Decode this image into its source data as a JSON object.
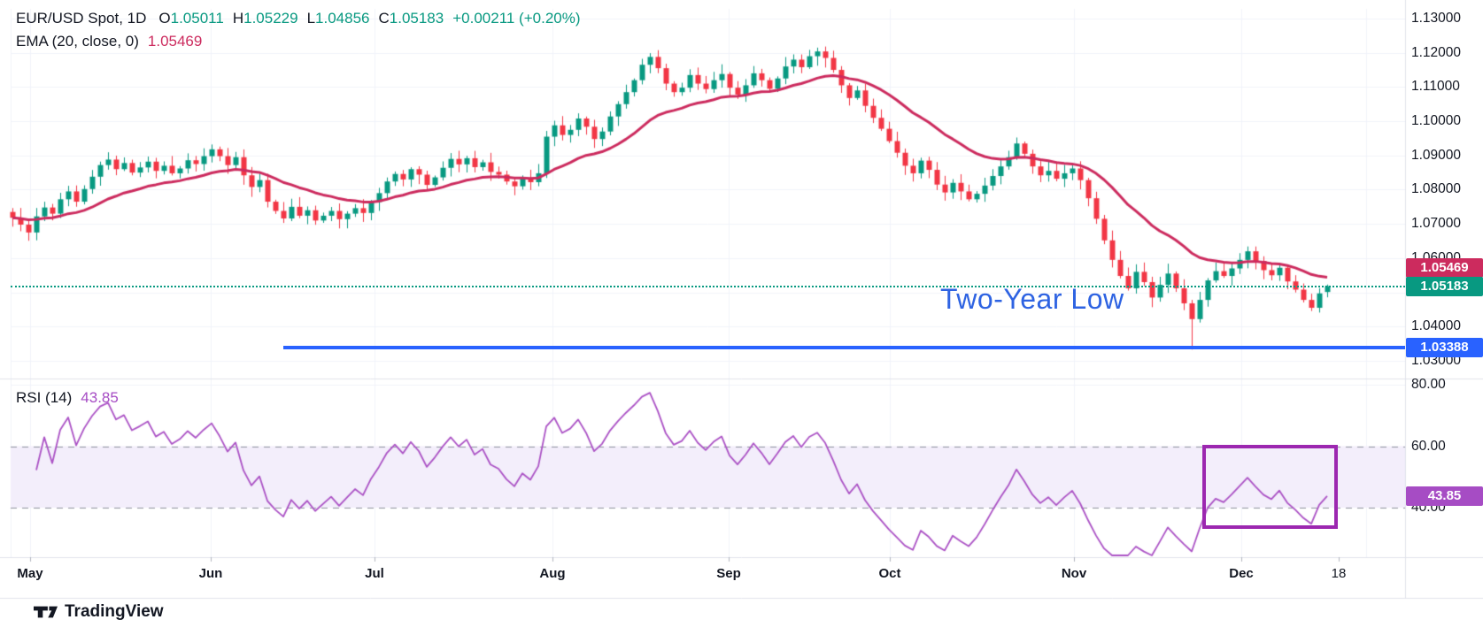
{
  "legend": {
    "symbol": "EUR/USD Spot, 1D",
    "ohlc": [
      {
        "k": "O",
        "v": "1.05011"
      },
      {
        "k": "H",
        "v": "1.05229"
      },
      {
        "k": "L",
        "v": "1.04856"
      },
      {
        "k": "C",
        "v": "1.05183"
      }
    ],
    "change": "+0.00211 (+0.20%)",
    "ema_label": "EMA (20, close, 0)",
    "ema_value": "1.05469",
    "rsi_label": "RSI (14)",
    "rsi_value": "43.85"
  },
  "badges": {
    "ema": "1.05469",
    "close": "1.05183",
    "support": "1.03388",
    "rsi": "43.85"
  },
  "annotations": {
    "two_year_low": "Two-Year Low",
    "support_price": "1.03388"
  },
  "watermark": "TradingView",
  "price_axis": {
    "labels": [
      "1.13000",
      "1.12000",
      "1.11000",
      "1.10000",
      "1.09000",
      "1.08000",
      "1.07000",
      "1.06000",
      "1.05000",
      "1.04000",
      "1.03000"
    ]
  },
  "rsi_axis": {
    "labels": [
      "80.00",
      "60.00",
      "40.00"
    ]
  },
  "time_axis": {
    "labels": [
      "May",
      "Jun",
      "Jul",
      "Aug",
      "Sep",
      "Oct",
      "Nov",
      "Dec",
      "18"
    ]
  },
  "colors": {
    "up": "#089981",
    "down": "#f23645",
    "ema": "#cc2b5e",
    "rsi_line": "#ab52c5",
    "badge_rsi": "#a64cc4",
    "support_blue": "#2962ff",
    "annotation_blue": "#2e63e2",
    "rsi_box": "#9c27b0",
    "text_dark": "#131722",
    "grid": "#f0f3fa",
    "band_fill": "#f3eefb",
    "dashed_gray": "#8f939e",
    "separator": "#e0e3eb"
  },
  "chart_data": {
    "type": "candlestick",
    "title": "EUR/USD Spot, 1D",
    "symbol": "EUR/USD Spot",
    "timeframe": "1D",
    "ylim": [
      1.03,
      1.13
    ],
    "x_categories": [
      "May",
      "Jun",
      "Jul",
      "Aug",
      "Sep",
      "Oct",
      "Nov",
      "Dec"
    ],
    "grid": true,
    "first_open": 1.0735,
    "closes": [
      1.0718,
      1.0698,
      1.0675,
      1.0722,
      1.0748,
      1.073,
      1.0772,
      1.0795,
      1.0765,
      1.0802,
      1.0838,
      1.0872,
      1.0888,
      1.086,
      1.0878,
      1.085,
      1.0865,
      1.0882,
      1.0855,
      1.087,
      1.0848,
      1.0862,
      1.0886,
      1.0875,
      1.0898,
      1.0918,
      1.0898,
      1.0872,
      1.0895,
      1.0842,
      1.0808,
      1.0828,
      1.0765,
      1.0738,
      1.0716,
      1.075,
      1.0724,
      1.074,
      1.071,
      1.0724,
      1.0738,
      1.0714,
      1.073,
      1.0746,
      1.0732,
      1.0764,
      1.079,
      1.0824,
      1.0846,
      1.083,
      1.086,
      1.0844,
      1.0814,
      1.0836,
      1.0864,
      1.089,
      1.0874,
      1.0892,
      1.0866,
      1.088,
      1.0852,
      1.0844,
      1.0824,
      1.081,
      1.0834,
      1.0822,
      1.0848,
      1.0955,
      1.0988,
      1.096,
      1.0975,
      1.1008,
      1.0984,
      1.0948,
      1.097,
      1.1014,
      1.105,
      1.1085,
      1.112,
      1.1165,
      1.1188,
      1.1155,
      1.111,
      1.1085,
      1.1098,
      1.1135,
      1.111,
      1.1094,
      1.112,
      1.1138,
      1.1098,
      1.1078,
      1.1105,
      1.114,
      1.112,
      1.1095,
      1.1125,
      1.116,
      1.118,
      1.1158,
      1.119,
      1.1204,
      1.1185,
      1.115,
      1.1105,
      1.1068,
      1.109,
      1.1045,
      1.101,
      1.0978,
      1.0942,
      1.0908,
      1.087,
      1.0848,
      1.0885,
      1.0858,
      1.0815,
      1.0792,
      1.082,
      1.0795,
      1.0772,
      1.0788,
      1.0812,
      1.084,
      1.0868,
      1.0895,
      1.0935,
      1.0905,
      1.0868,
      1.0842,
      1.0855,
      1.0832,
      1.0848,
      1.0862,
      1.0828,
      1.0775,
      1.0715,
      1.0652,
      1.0595,
      1.0548,
      1.0512,
      1.056,
      1.053,
      1.0485,
      1.0522,
      1.0555,
      1.0512,
      1.0468,
      1.0422,
      1.0478,
      1.0535,
      1.0562,
      1.0548,
      1.057,
      1.0595,
      1.062,
      1.0592,
      1.0565,
      1.055,
      1.0572,
      1.0532,
      1.0508,
      1.0478,
      1.0455,
      1.0497,
      1.05183
    ],
    "last_candle": {
      "open": 1.05011,
      "high": 1.05229,
      "low": 1.04856,
      "close": 1.05183
    },
    "spike_low": {
      "index": 148,
      "low": 1.03331
    },
    "support_level": 1.03388,
    "overlays": {
      "ema_period": 20,
      "ema_last": 1.05469
    },
    "rsi": {
      "period": 14,
      "last": 43.85,
      "upper_band": 60,
      "lower_band": 40,
      "scale_ticks": [
        80,
        60,
        40
      ]
    }
  }
}
